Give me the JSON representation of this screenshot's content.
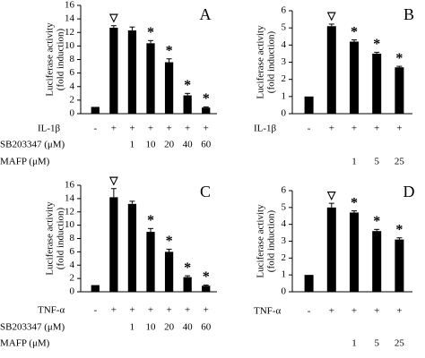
{
  "chart_data": [
    {
      "type": "bar",
      "panel": "A",
      "ylabel": [
        "Luciferase activity",
        "(fold induction)"
      ],
      "color": "#000000",
      "ylim": [
        0,
        16
      ],
      "yticks": [
        0,
        2,
        4,
        6,
        8,
        10,
        12,
        14,
        16
      ],
      "values": [
        1.0,
        12.7,
        12.3,
        10.4,
        7.6,
        2.7,
        0.9
      ],
      "errors": [
        0,
        0.3,
        0.5,
        0.4,
        0.5,
        0.3,
        0.1
      ],
      "markers": [
        null,
        "▽",
        null,
        "*",
        "*",
        "*",
        "*"
      ],
      "rows": [
        {
          "name": "IL-1β",
          "labels": [
            "-",
            "+",
            "+",
            "+",
            "+",
            "+",
            "+"
          ]
        },
        {
          "name": "SB203347 (μM)",
          "labels": [
            null,
            null,
            "1",
            "10",
            "20",
            "40",
            "60"
          ]
        },
        {
          "name": "MAFP (μM)"
        }
      ]
    },
    {
      "type": "bar",
      "panel": "B",
      "ylabel": [
        "Luciferase activity",
        "(fold induction)"
      ],
      "color": "#000000",
      "ylim": [
        0,
        6
      ],
      "yticks": [
        0,
        1,
        2,
        3,
        4,
        5,
        6
      ],
      "values": [
        1.0,
        5.1,
        4.2,
        3.5,
        2.7
      ],
      "errors": [
        0,
        0.12,
        0.1,
        0.08,
        0.06
      ],
      "markers": [
        null,
        "▽",
        "*",
        "*",
        "*"
      ],
      "rows": [
        {
          "name": "IL-1β",
          "labels": [
            "-",
            "+",
            "+",
            "+",
            "+"
          ]
        },
        {
          "labels": [
            null,
            null,
            "1",
            "5",
            "25"
          ]
        }
      ]
    },
    {
      "type": "bar",
      "panel": "C",
      "ylabel": [
        "Luciferase activity",
        "(fold induction)"
      ],
      "color": "#000000",
      "ylim": [
        0,
        16
      ],
      "yticks": [
        0,
        2,
        4,
        6,
        8,
        10,
        12,
        14,
        16
      ],
      "values": [
        1.0,
        14.2,
        13.2,
        9.0,
        6.0,
        2.2,
        0.9
      ],
      "errors": [
        0,
        1.3,
        0.4,
        0.5,
        0.4,
        0.2,
        0.1
      ],
      "markers": [
        null,
        "▽",
        null,
        "*",
        "*",
        "*",
        "*"
      ],
      "rows": [
        {
          "name": "TNF-α",
          "labels": [
            "-",
            "+",
            "+",
            "+",
            "+",
            "+",
            "+"
          ]
        },
        {
          "name": "SB203347 (μM)",
          "labels": [
            null,
            null,
            "1",
            "10",
            "20",
            "40",
            "60"
          ]
        },
        {
          "name": "MAFP (μM)"
        }
      ]
    },
    {
      "type": "bar",
      "panel": "D",
      "ylabel": [
        "Luciferase activity",
        "(fold induction)"
      ],
      "color": "#000000",
      "ylim": [
        0,
        6
      ],
      "yticks": [
        0,
        1,
        2,
        3,
        4,
        5,
        6
      ],
      "values": [
        1.0,
        5.0,
        4.7,
        3.6,
        3.1
      ],
      "errors": [
        0,
        0.25,
        0.1,
        0.1,
        0.1
      ],
      "markers": [
        null,
        "▽",
        "*",
        "*",
        "*"
      ],
      "rows": [
        {
          "name": "TNF-α",
          "labels": [
            "-",
            "+",
            "+",
            "+",
            "+"
          ]
        },
        {
          "labels": [
            null,
            null,
            "1",
            "5",
            "25"
          ]
        }
      ]
    }
  ]
}
